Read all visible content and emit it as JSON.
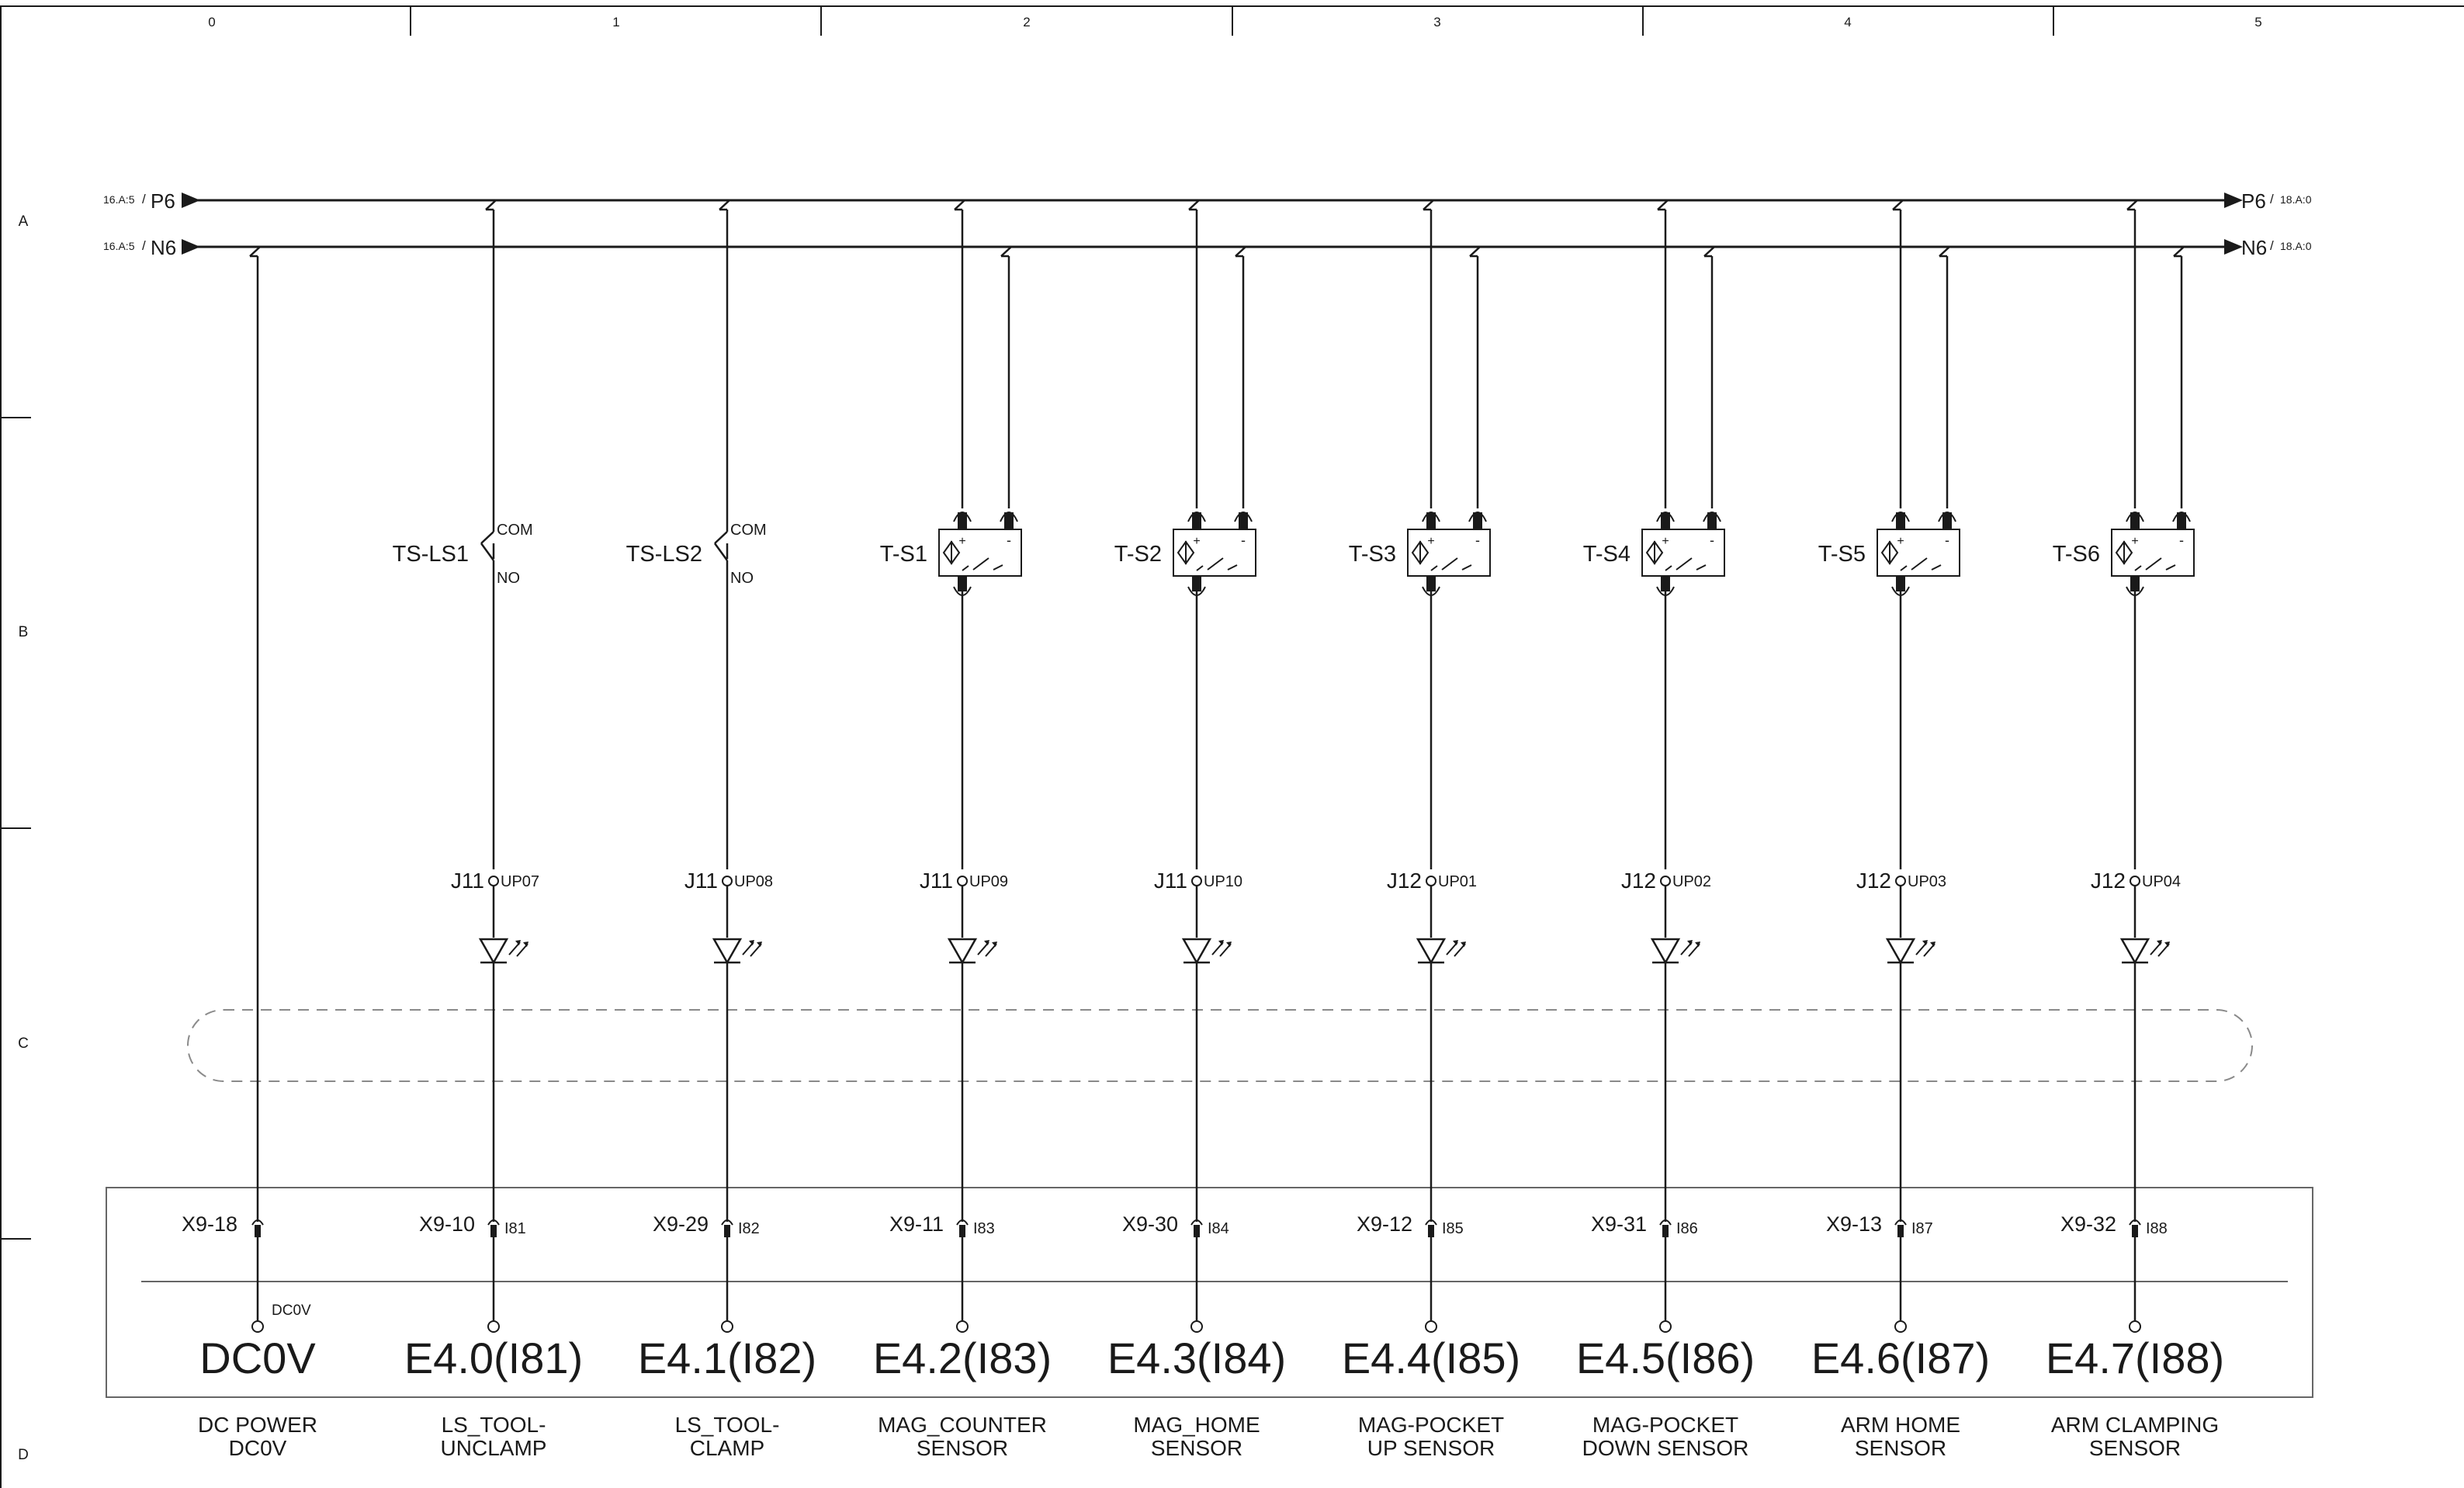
{
  "frame": {
    "columns": [
      "0",
      "1",
      "2",
      "3",
      "4",
      "5"
    ],
    "rows": [
      "A",
      "B",
      "C",
      "D"
    ]
  },
  "rails": {
    "p6": {
      "label": "P6",
      "ref_in": "16.A:5",
      "ref_out": "18.A:0",
      "sep": "/"
    },
    "n6": {
      "label": "N6",
      "ref_in": "16.A:5",
      "ref_out": "18.A:0",
      "sep": "/"
    }
  },
  "power": {
    "terminal": "X9-18",
    "tag": "DC0V",
    "address": "DC0V",
    "desc": [
      "DC POWER",
      "DC0V"
    ]
  },
  "channels": [
    {
      "device": "TS-LS1",
      "type": "switch",
      "com": "COM",
      "no": "NO",
      "conn": "J11",
      "pin": "UP07",
      "terminal": "X9-10",
      "bit": "I81",
      "address": "E4.0(I81)",
      "desc": [
        "LS_TOOL-",
        "UNCLAMP"
      ]
    },
    {
      "device": "TS-LS2",
      "type": "switch",
      "com": "COM",
      "no": "NO",
      "conn": "J11",
      "pin": "UP08",
      "terminal": "X9-29",
      "bit": "I82",
      "address": "E4.1(I82)",
      "desc": [
        "LS_TOOL-",
        "CLAMP"
      ]
    },
    {
      "device": "T-S1",
      "type": "sensor",
      "plus": "+",
      "minus": "-",
      "conn": "J11",
      "pin": "UP09",
      "terminal": "X9-11",
      "bit": "I83",
      "address": "E4.2(I83)",
      "desc": [
        "MAG_COUNTER",
        "SENSOR"
      ]
    },
    {
      "device": "T-S2",
      "type": "sensor",
      "plus": "+",
      "minus": "-",
      "conn": "J11",
      "pin": "UP10",
      "terminal": "X9-30",
      "bit": "I84",
      "address": "E4.3(I84)",
      "desc": [
        "MAG_HOME",
        "SENSOR"
      ]
    },
    {
      "device": "T-S3",
      "type": "sensor",
      "plus": "+",
      "minus": "-",
      "conn": "J12",
      "pin": "UP01",
      "terminal": "X9-12",
      "bit": "I85",
      "address": "E4.4(I85)",
      "desc": [
        "MAG-POCKET",
        "UP SENSOR"
      ]
    },
    {
      "device": "T-S4",
      "type": "sensor",
      "plus": "+",
      "minus": "-",
      "conn": "J12",
      "pin": "UP02",
      "terminal": "X9-31",
      "bit": "I86",
      "address": "E4.5(I86)",
      "desc": [
        "MAG-POCKET",
        "DOWN SENSOR"
      ]
    },
    {
      "device": "T-S5",
      "type": "sensor",
      "plus": "+",
      "minus": "-",
      "conn": "J12",
      "pin": "UP03",
      "terminal": "X9-13",
      "bit": "I87",
      "address": "E4.6(I87)",
      "desc": [
        "ARM HOME",
        "SENSOR"
      ]
    },
    {
      "device": "T-S6",
      "type": "sensor",
      "plus": "+",
      "minus": "-",
      "conn": "J12",
      "pin": "UP04",
      "terminal": "X9-32",
      "bit": "I88",
      "address": "E4.7(I88)",
      "desc": [
        "ARM CLAMPING",
        "SENSOR"
      ]
    }
  ],
  "colors": {
    "line": "#1a1a1a",
    "dash": "#8a8a8a",
    "box": "#666666"
  }
}
